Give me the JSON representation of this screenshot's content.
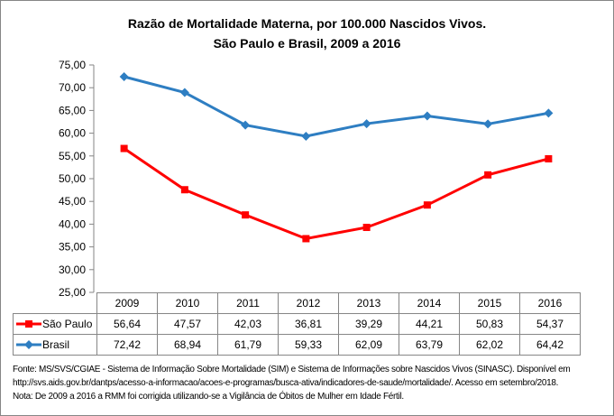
{
  "chart_data": {
    "type": "line",
    "title": "Razão de Mortalidade Materna, por 100.000 Nascidos Vivos.",
    "subtitle": "São Paulo e Brasil, 2009 a 2016",
    "categories": [
      "2009",
      "2010",
      "2011",
      "2012",
      "2013",
      "2014",
      "2015",
      "2016"
    ],
    "ylim": [
      25,
      75
    ],
    "yticks": [
      "75,00",
      "70,00",
      "65,00",
      "60,00",
      "55,00",
      "50,00",
      "45,00",
      "40,00",
      "35,00",
      "30,00",
      "25,00"
    ],
    "grid": false,
    "legend": "data-table",
    "series": [
      {
        "name": "São Paulo",
        "color": "#FF0000",
        "marker": "square",
        "values": [
          56.64,
          47.57,
          42.03,
          36.81,
          39.29,
          44.21,
          50.83,
          54.37
        ],
        "labels": [
          "56,64",
          "47,57",
          "42,03",
          "36,81",
          "39,29",
          "44,21",
          "50,83",
          "54,37"
        ]
      },
      {
        "name": "Brasil",
        "color": "#2E7EC2",
        "marker": "diamond",
        "values": [
          72.42,
          68.94,
          61.79,
          59.33,
          62.09,
          63.79,
          62.02,
          64.42
        ],
        "labels": [
          "72,42",
          "68,94",
          "61,79",
          "59,33",
          "62,09",
          "63,79",
          "62,02",
          "64,42"
        ]
      }
    ]
  },
  "footnotes": [
    "Fonte: MS/SVS/CGIAE - Sistema de Informação Sobre Mortalidade (SIM) e Sistema de Informações sobre Nascidos Vivos (SINASC). Disponível em",
    "http://svs.aids.gov.br/dantps/acesso-a-informacao/acoes-e-programas/busca-ativa/indicadores-de-saude/mortalidade/. Acesso em setembro/2018.",
    "Nota: De 2009 a 2016 a RMM foi corrigida utilizando-se a Vigilância de Óbitos de Mulher em Idade Fértil."
  ]
}
